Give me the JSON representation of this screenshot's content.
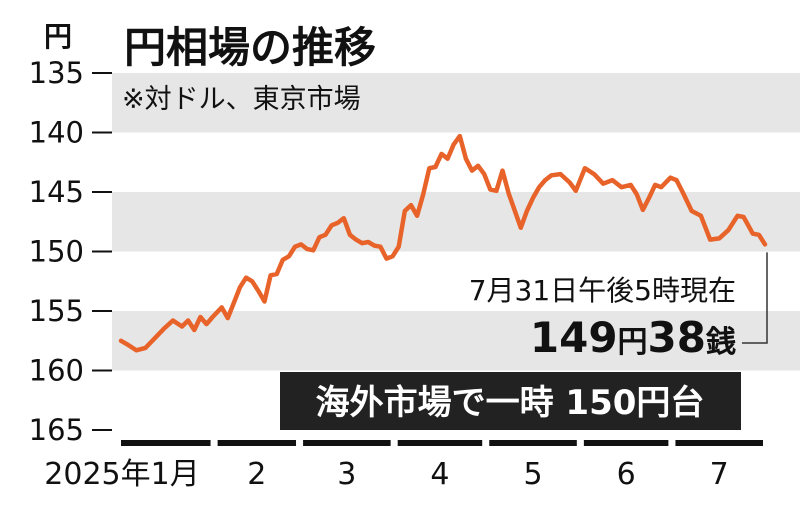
{
  "chart_data": {
    "type": "line",
    "title": "円相場の推移",
    "subtitle": "※対ドル、東京市場",
    "unit_label": "円",
    "y_axis": {
      "min": 135,
      "max": 165,
      "inverted": true,
      "ticks": [
        135,
        140,
        145,
        150,
        155,
        160,
        165
      ]
    },
    "bands": [
      [
        135,
        140
      ],
      [
        145,
        150
      ],
      [
        155,
        160
      ]
    ],
    "x_axis": {
      "months": [
        "2025年1月",
        "2",
        "3",
        "4",
        "5",
        "6",
        "7"
      ]
    },
    "series": [
      {
        "color": "#E8632A",
        "points": [
          [
            "2025-01-01",
            157.5
          ],
          [
            "2025-01-03",
            157.8
          ],
          [
            "2025-01-06",
            158.3
          ],
          [
            "2025-01-09",
            158.1
          ],
          [
            "2025-01-12",
            157.3
          ],
          [
            "2025-01-15",
            156.5
          ],
          [
            "2025-01-18",
            155.8
          ],
          [
            "2025-01-21",
            156.3
          ],
          [
            "2025-01-23",
            155.8
          ],
          [
            "2025-01-25",
            156.6
          ],
          [
            "2025-01-27",
            155.5
          ],
          [
            "2025-01-29",
            156.1
          ],
          [
            "2025-01-31",
            155.5
          ],
          [
            "2025-02-03",
            154.7
          ],
          [
            "2025-02-05",
            155.6
          ],
          [
            "2025-02-07",
            154.3
          ],
          [
            "2025-02-09",
            153.0
          ],
          [
            "2025-02-11",
            152.2
          ],
          [
            "2025-02-13",
            152.5
          ],
          [
            "2025-02-15",
            153.3
          ],
          [
            "2025-02-17",
            154.2
          ],
          [
            "2025-02-19",
            152.0
          ],
          [
            "2025-02-21",
            151.9
          ],
          [
            "2025-02-23",
            150.7
          ],
          [
            "2025-02-25",
            150.4
          ],
          [
            "2025-02-27",
            149.6
          ],
          [
            "2025-03-01",
            149.4
          ],
          [
            "2025-03-03",
            149.8
          ],
          [
            "2025-03-05",
            149.9
          ],
          [
            "2025-03-07",
            148.8
          ],
          [
            "2025-03-09",
            148.6
          ],
          [
            "2025-03-11",
            147.8
          ],
          [
            "2025-03-13",
            147.6
          ],
          [
            "2025-03-15",
            147.2
          ],
          [
            "2025-03-17",
            148.6
          ],
          [
            "2025-03-19",
            149.0
          ],
          [
            "2025-03-21",
            149.3
          ],
          [
            "2025-03-23",
            149.2
          ],
          [
            "2025-03-25",
            149.5
          ],
          [
            "2025-03-27",
            149.6
          ],
          [
            "2025-03-29",
            150.6
          ],
          [
            "2025-03-31",
            150.4
          ],
          [
            "2025-04-02",
            149.6
          ],
          [
            "2025-04-04",
            146.6
          ],
          [
            "2025-04-06",
            146.1
          ],
          [
            "2025-04-08",
            147.0
          ],
          [
            "2025-04-10",
            145.2
          ],
          [
            "2025-04-12",
            143.0
          ],
          [
            "2025-04-14",
            142.9
          ],
          [
            "2025-04-16",
            141.8
          ],
          [
            "2025-04-18",
            142.2
          ],
          [
            "2025-04-20",
            141.0
          ],
          [
            "2025-04-22",
            140.3
          ],
          [
            "2025-04-24",
            142.2
          ],
          [
            "2025-04-26",
            143.2
          ],
          [
            "2025-04-28",
            142.8
          ],
          [
            "2025-04-30",
            143.5
          ],
          [
            "2025-05-02",
            144.8
          ],
          [
            "2025-05-04",
            144.9
          ],
          [
            "2025-05-06",
            143.2
          ],
          [
            "2025-05-08",
            145.1
          ],
          [
            "2025-05-12",
            148.0
          ],
          [
            "2025-05-14",
            146.6
          ],
          [
            "2025-05-16",
            145.5
          ],
          [
            "2025-05-18",
            144.6
          ],
          [
            "2025-05-20",
            144.0
          ],
          [
            "2025-05-22",
            143.6
          ],
          [
            "2025-05-25",
            143.5
          ],
          [
            "2025-05-28",
            144.2
          ],
          [
            "2025-05-30",
            144.9
          ],
          [
            "2025-06-02",
            143.0
          ],
          [
            "2025-06-05",
            143.5
          ],
          [
            "2025-06-08",
            144.3
          ],
          [
            "2025-06-11",
            144.0
          ],
          [
            "2025-06-14",
            144.6
          ],
          [
            "2025-06-17",
            144.4
          ],
          [
            "2025-06-19",
            145.2
          ],
          [
            "2025-06-21",
            146.5
          ],
          [
            "2025-06-23",
            145.5
          ],
          [
            "2025-06-25",
            144.4
          ],
          [
            "2025-06-27",
            144.6
          ],
          [
            "2025-06-30",
            143.8
          ],
          [
            "2025-07-02",
            144.0
          ],
          [
            "2025-07-04",
            145.0
          ],
          [
            "2025-07-07",
            146.6
          ],
          [
            "2025-07-10",
            147.0
          ],
          [
            "2025-07-13",
            149.0
          ],
          [
            "2025-07-16",
            148.9
          ],
          [
            "2025-07-19",
            148.2
          ],
          [
            "2025-07-22",
            147.0
          ],
          [
            "2025-07-24",
            147.1
          ],
          [
            "2025-07-27",
            148.5
          ],
          [
            "2025-07-29",
            148.6
          ],
          [
            "2025-07-31",
            149.4
          ]
        ]
      }
    ],
    "annotations": {
      "latest_label": "7月31日午後5時現在",
      "latest_value_number": "149",
      "latest_value_unit1": "円",
      "latest_value_number2": "38",
      "latest_value_unit2": "銭",
      "headline": "海外市場で一時 150円台",
      "headline_bg": "#222222"
    }
  }
}
